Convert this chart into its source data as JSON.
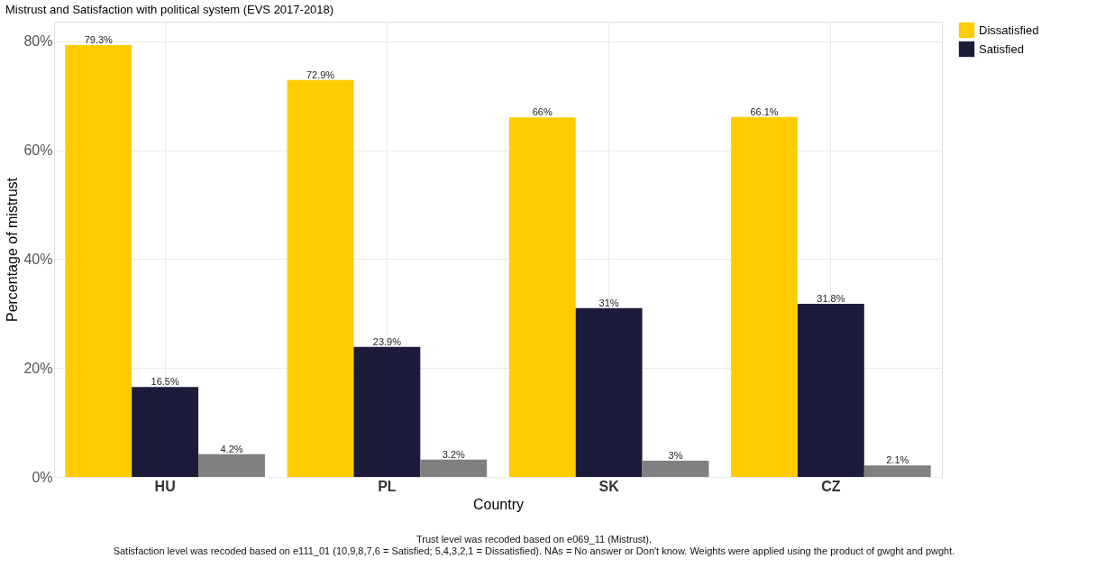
{
  "chart_data": {
    "type": "bar",
    "title": "Mistrust and Satisfaction with political system (EVS 2017-2018)",
    "xlabel": "Country",
    "ylabel": "Percentage of mistrust",
    "categories": [
      "HU",
      "PL",
      "SK",
      "CZ"
    ],
    "series": [
      {
        "name": "Dissatisfied",
        "color": "#ffcc00",
        "values": [
          79.3,
          72.9,
          66,
          66.1
        ],
        "value_labels": [
          "79.3%",
          "72.9%",
          "66%",
          "66.1%"
        ]
      },
      {
        "name": "Satisfied",
        "color": "#1c1c3a",
        "values": [
          16.5,
          23.9,
          31,
          31.8
        ],
        "value_labels": [
          "16.5%",
          "23.9%",
          "31%",
          "31.8%"
        ]
      },
      {
        "color": "#808080",
        "values": [
          4.2,
          3.2,
          3,
          2.1
        ],
        "value_labels": [
          "4.2%",
          "3.2%",
          "3%",
          "2.1%"
        ]
      }
    ],
    "ylim": [
      0,
      83.6
    ],
    "yticks": [
      {
        "value": 0,
        "label": "0%"
      },
      {
        "value": 20,
        "label": "20%"
      },
      {
        "value": 40,
        "label": "40%"
      },
      {
        "value": 60,
        "label": "60%"
      },
      {
        "value": 80,
        "label": "80%"
      }
    ],
    "grid": true,
    "legend": "right",
    "annotations": [
      "Trust level was recoded based on e069_11 (Mistrust).",
      "Satisfaction level was recoded based on e111_01 (10,9,8,7,6 = Satisfied; 5,4,3,2,1 = Dissatisfied). NAs = No answer or Don't know. Weights were applied using the product of gwght and pwght."
    ]
  }
}
